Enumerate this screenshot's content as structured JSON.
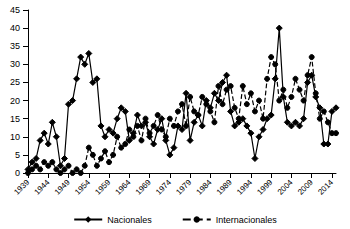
{
  "chart_data": {
    "type": "line",
    "x": [
      1939,
      1940,
      1941,
      1942,
      1943,
      1944,
      1945,
      1946,
      1947,
      1948,
      1949,
      1950,
      1951,
      1952,
      1953,
      1954,
      1955,
      1956,
      1957,
      1958,
      1959,
      1960,
      1961,
      1962,
      1963,
      1964,
      1965,
      1966,
      1967,
      1968,
      1969,
      1970,
      1971,
      1972,
      1973,
      1974,
      1975,
      1976,
      1977,
      1978,
      1979,
      1980,
      1981,
      1982,
      1983,
      1984,
      1985,
      1986,
      1987,
      1988,
      1989,
      1990,
      1991,
      1992,
      1993,
      1994,
      1995,
      1996,
      1997,
      1998,
      1999,
      2000,
      2001,
      2002,
      2003,
      2004,
      2005,
      2006,
      2007,
      2008,
      2009,
      2010,
      2011,
      2012,
      2013,
      2014,
      2015
    ],
    "series": [
      {
        "name": "Nacionales",
        "color": "#000000",
        "marker": "diamond",
        "line_style": "solid",
        "values": [
          1,
          3,
          4,
          9,
          11,
          8,
          14,
          10,
          2,
          4,
          19,
          20,
          26,
          32,
          30,
          33,
          25,
          26,
          13,
          10,
          12,
          11,
          15,
          18,
          17,
          9,
          11,
          16,
          13,
          14,
          10,
          8,
          12,
          15,
          9,
          5,
          7,
          13,
          12,
          22,
          9,
          14,
          16,
          13,
          20,
          18,
          22,
          20,
          25,
          27,
          17,
          13,
          14,
          15,
          13,
          11,
          4,
          10,
          12,
          15,
          16,
          26,
          40,
          21,
          14,
          13,
          14,
          13,
          15,
          25,
          27,
          21,
          18,
          8,
          8,
          17,
          18
        ]
      },
      {
        "name": "Internacionales",
        "color": "#000000",
        "marker": "circle",
        "line_style": "dashed",
        "values": [
          0,
          1,
          2,
          1,
          3,
          2,
          3,
          1,
          0,
          1,
          2,
          0,
          1,
          0,
          2,
          7,
          5,
          2,
          4,
          6,
          3,
          5,
          10,
          7,
          8,
          12,
          10,
          13,
          9,
          15,
          11,
          13,
          16,
          12,
          10,
          15,
          13,
          17,
          19,
          13,
          21,
          17,
          16,
          21,
          19,
          17,
          14,
          24,
          19,
          23,
          24,
          18,
          15,
          24,
          19,
          22,
          17,
          20,
          15,
          26,
          32,
          30,
          20,
          23,
          18,
          21,
          26,
          23,
          20,
          27,
          32,
          22,
          15,
          17,
          14,
          11,
          11
        ]
      }
    ],
    "xlim": [
      1939,
      2015
    ],
    "xticks": [
      1939,
      1944,
      1949,
      1954,
      1959,
      1964,
      1969,
      1974,
      1979,
      1984,
      1989,
      1994,
      1999,
      2004,
      2009,
      2014
    ],
    "ylim": [
      0,
      45
    ],
    "yticks": [
      0,
      5,
      10,
      15,
      20,
      25,
      30,
      35,
      40,
      45
    ],
    "grid": false,
    "legend": "bottom"
  }
}
